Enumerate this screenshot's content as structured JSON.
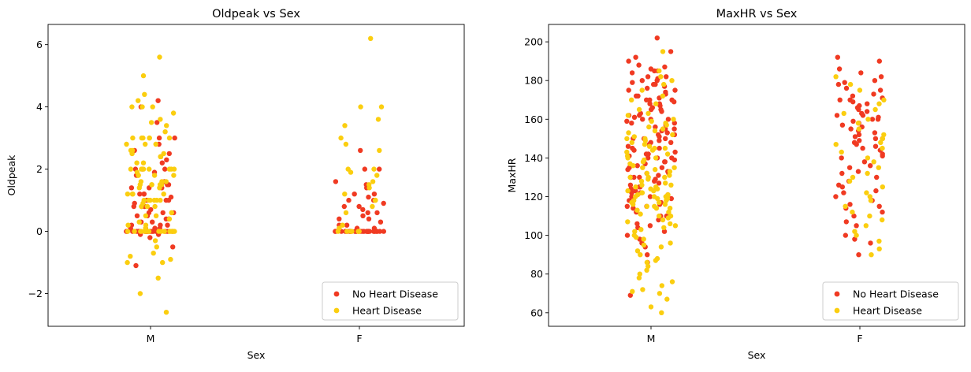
{
  "chart_data": [
    {
      "type": "scatter",
      "subtype": "strip",
      "title": "Oldpeak vs Sex",
      "xlabel": "Sex",
      "ylabel": "Oldpeak",
      "categories": [
        "M",
        "F"
      ],
      "ylim": [
        -3.05,
        6.65
      ],
      "yticks": [
        -2,
        0,
        2,
        4,
        6
      ],
      "ytick_labels": [
        "−2",
        "0",
        "2",
        "4",
        "6"
      ],
      "grid": false,
      "legend_position": "lower-right",
      "series": [
        {
          "name": "No Heart Disease",
          "color": "#f03a22",
          "points": {
            "M": [
              4.2,
              4.0,
              3.5,
              3.0,
              3.0,
              2.8,
              2.6,
              2.5,
              2.4,
              2.3,
              2.2,
              2.0,
              2.0,
              2.0,
              1.9,
              1.8,
              1.8,
              1.6,
              1.5,
              1.5,
              1.4,
              1.4,
              1.4,
              1.2,
              1.2,
              1.2,
              1.1,
              1.0,
              1.0,
              1.0,
              1.0,
              0.9,
              0.8,
              0.8,
              0.8,
              0.7,
              0.6,
              0.6,
              0.6,
              0.5,
              0.5,
              0.4,
              0.4,
              0.3,
              0.3,
              0.2,
              0.2,
              0.2,
              0.1,
              0.1,
              0.1,
              0.1,
              0.0,
              0.0,
              0.0,
              0.0,
              0.0,
              0.0,
              0.0,
              0.0,
              0.0,
              0.0,
              0.0,
              0.0,
              0.0,
              0.0,
              0.0,
              0.0,
              0.0,
              0.0,
              0.0,
              0.0,
              0.0,
              0.0,
              0.0,
              0.0,
              0.0,
              0.0,
              -0.1,
              -0.1,
              -0.2,
              -0.5,
              -1.1
            ],
            "F": [
              2.6,
              2.0,
              2.0,
              1.6,
              1.5,
              1.4,
              1.2,
              1.2,
              1.1,
              1.0,
              1.0,
              0.9,
              0.8,
              0.8,
              0.7,
              0.6,
              0.6,
              0.5,
              0.4,
              0.4,
              0.3,
              0.2,
              0.2,
              0.1,
              0.1,
              0.0,
              0.0,
              0.0,
              0.0,
              0.0,
              0.0,
              0.0,
              0.0,
              0.0,
              0.0,
              0.0,
              0.0,
              0.0,
              0.0,
              0.0,
              0.0,
              0.0,
              0.0,
              0.0,
              0.0,
              0.0,
              0.0,
              0.0,
              0.0,
              0.0,
              0.0,
              0.0,
              0.0,
              0.0,
              0.0,
              0.0
            ]
          }
        },
        {
          "name": "Heart Disease",
          "color": "#fbce0f",
          "points": {
            "M": [
              5.6,
              5.0,
              4.4,
              4.2,
              4.0,
              4.0,
              4.0,
              3.8,
              3.6,
              3.5,
              3.4,
              3.2,
              3.0,
              3.0,
              3.0,
              3.0,
              3.0,
              3.0,
              2.8,
              2.8,
              2.8,
              2.6,
              2.6,
              2.5,
              2.5,
              2.5,
              2.4,
              2.4,
              2.2,
              2.2,
              2.0,
              2.0,
              2.0,
              2.0,
              2.0,
              2.0,
              2.0,
              1.9,
              1.8,
              1.8,
              1.8,
              1.8,
              1.6,
              1.6,
              1.6,
              1.5,
              1.5,
              1.5,
              1.5,
              1.5,
              1.4,
              1.4,
              1.2,
              1.2,
              1.2,
              1.2,
              1.0,
              1.0,
              1.0,
              1.0,
              1.0,
              1.0,
              0.9,
              0.8,
              0.8,
              0.8,
              0.8,
              0.6,
              0.6,
              0.5,
              0.5,
              0.4,
              0.3,
              0.2,
              0.2,
              0.1,
              0.0,
              0.0,
              0.0,
              0.0,
              0.0,
              0.0,
              0.0,
              0.0,
              0.0,
              0.0,
              0.0,
              0.0,
              0.0,
              0.0,
              0.0,
              0.0,
              0.0,
              -0.3,
              -0.5,
              -0.7,
              -0.8,
              -0.9,
              -1.0,
              -1.0,
              -1.5,
              -2.0,
              -2.6
            ],
            "F": [
              6.2,
              4.0,
              4.0,
              3.6,
              3.4,
              3.0,
              2.8,
              2.6,
              2.0,
              2.0,
              1.9,
              1.8,
              1.6,
              1.5,
              1.4,
              1.2,
              1.0,
              1.0,
              0.8,
              0.6,
              0.2,
              0.1,
              0.0,
              0.0,
              0.0,
              0.0,
              0.0,
              0.0
            ]
          }
        }
      ]
    },
    {
      "type": "scatter",
      "subtype": "strip",
      "title": "MaxHR vs Sex",
      "xlabel": "Sex",
      "ylabel": "MaxHR",
      "categories": [
        "M",
        "F"
      ],
      "ylim": [
        53,
        209
      ],
      "yticks": [
        60,
        80,
        100,
        120,
        140,
        160,
        180,
        200
      ],
      "ytick_labels": [
        "60",
        "80",
        "100",
        "120",
        "140",
        "160",
        "180",
        "200"
      ],
      "grid": false,
      "legend_position": "lower-right",
      "series": [
        {
          "name": "No Heart Disease",
          "color": "#f03a22",
          "points": {
            "M": [
              202,
              195,
              192,
              190,
              188,
              187,
              186,
              185,
              185,
              184,
              182,
              182,
              181,
              180,
              180,
              179,
              178,
              178,
              177,
              176,
              175,
              175,
              174,
              173,
              172,
              172,
              171,
              170,
              170,
              170,
              169,
              168,
              168,
              167,
              166,
              165,
              165,
              164,
              163,
              162,
              162,
              161,
              160,
              160,
              160,
              159,
              158,
              158,
              157,
              156,
              155,
              155,
              154,
              153,
              152,
              152,
              151,
              150,
              150,
              150,
              149,
              148,
              148,
              147,
              146,
              145,
              145,
              144,
              143,
              142,
              142,
              141,
              140,
              140,
              140,
              139,
              138,
              138,
              137,
              136,
              135,
              135,
              134,
              133,
              132,
              132,
              131,
              130,
              130,
              130,
              129,
              128,
              127,
              126,
              125,
              125,
              124,
              123,
              122,
              122,
              121,
              120,
              120,
              119,
              118,
              117,
              116,
              115,
              115,
              114,
              112,
              110,
              110,
              108,
              106,
              105,
              104,
              102,
              100,
              98,
              96,
              94,
              90,
              86,
              69
            ],
            "F": [
              192,
              190,
              186,
              184,
              182,
              180,
              179,
              178,
              176,
              175,
              173,
              172,
              171,
              170,
              170,
              169,
              168,
              167,
              166,
              165,
              164,
              163,
              162,
              162,
              161,
              160,
              160,
              159,
              158,
              157,
              156,
              155,
              154,
              153,
              152,
              151,
              150,
              150,
              149,
              148,
              147,
              146,
              145,
              144,
              142,
              141,
              140,
              138,
              136,
              135,
              133,
              132,
              130,
              128,
              126,
              125,
              123,
              122,
              120,
              118,
              116,
              115,
              114,
              112,
              110,
              107,
              105,
              100,
              98,
              96,
              90
            ]
          }
        },
        {
          "name": "Heart Disease",
          "color": "#fbce0f",
          "points": {
            "M": [
              195,
              185,
              182,
              180,
              178,
              175,
              172,
              170,
              168,
              165,
              163,
              162,
              160,
              159,
              158,
              157,
              156,
              155,
              154,
              153,
              152,
              151,
              150,
              150,
              149,
              148,
              147,
              146,
              145,
              145,
              144,
              143,
              142,
              141,
              140,
              140,
              139,
              138,
              137,
              136,
              135,
              135,
              134,
              133,
              132,
              131,
              130,
              130,
              130,
              129,
              128,
              127,
              126,
              126,
              125,
              125,
              124,
              124,
              123,
              123,
              122,
              122,
              121,
              121,
              120,
              120,
              120,
              120,
              119,
              119,
              118,
              118,
              117,
              117,
              116,
              116,
              115,
              115,
              114,
              114,
              113,
              112,
              111,
              110,
              110,
              109,
              108,
              107,
              106,
              105,
              104,
              103,
              102,
              100,
              99,
              98,
              96,
              95,
              94,
              92,
              90,
              88,
              87,
              86,
              84,
              82,
              80,
              78,
              76,
              74,
              72,
              71,
              70,
              67,
              63,
              60
            ],
            "F": [
              182,
              178,
              175,
              170,
              168,
              165,
              163,
              160,
              158,
              155,
              152,
              150,
              148,
              147,
              145,
              143,
              140,
              138,
              135,
              132,
              130,
              128,
              125,
              122,
              120,
              118,
              115,
              112,
              110,
              108,
              105,
              102,
              100,
              97,
              93,
              90
            ]
          }
        }
      ]
    }
  ]
}
